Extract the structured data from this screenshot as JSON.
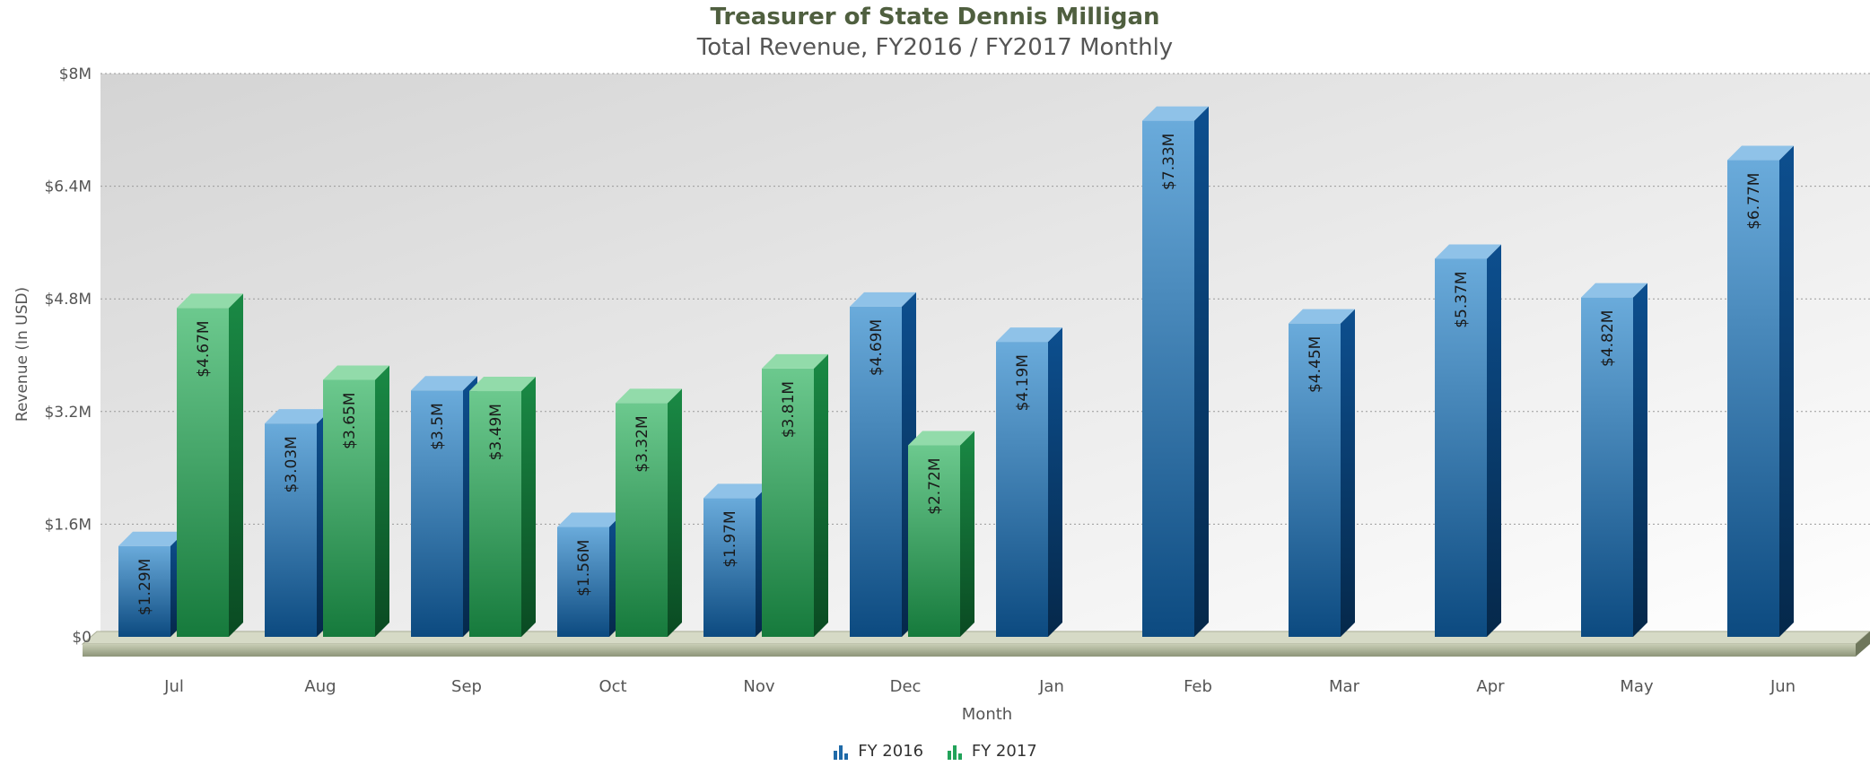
{
  "chart_data": {
    "type": "bar",
    "title": "Treasurer of State Dennis Milligan",
    "subtitle": "Total Revenue, FY2016 / FY2017 Monthly",
    "xlabel": "Month",
    "ylabel": "Revenue (In USD)",
    "ylim": [
      0,
      8000000
    ],
    "yticks": [
      "$0",
      "$1.6M",
      "$3.2M",
      "$4.8M",
      "$6.4M",
      "$8M"
    ],
    "ytick_values": [
      0,
      1600000,
      3200000,
      4800000,
      6400000,
      8000000
    ],
    "grid": true,
    "legend_position": "bottom-center",
    "categories": [
      "Jul",
      "Aug",
      "Sep",
      "Oct",
      "Nov",
      "Dec",
      "Jan",
      "Feb",
      "Mar",
      "Apr",
      "May",
      "Jun"
    ],
    "series": [
      {
        "name": "FY 2016",
        "color": "#1f6aa8",
        "values": [
          1290000,
          3030000,
          3500000,
          1560000,
          1970000,
          4690000,
          4190000,
          7330000,
          4450000,
          5370000,
          4820000,
          6770000
        ],
        "labels": [
          "$1.29M",
          "$3.03M",
          "$3.5M",
          "$1.56M",
          "$1.97M",
          "$4.69M",
          "$4.19M",
          "$7.33M",
          "$4.45M",
          "$5.37M",
          "$4.82M",
          "$6.77M"
        ]
      },
      {
        "name": "FY 2017",
        "color": "#22a35a",
        "values": [
          4670000,
          3650000,
          3490000,
          3320000,
          3810000,
          2720000,
          null,
          null,
          null,
          null,
          null,
          null
        ],
        "labels": [
          "$4.67M",
          "$3.65M",
          "$3.49M",
          "$3.32M",
          "$3.81M",
          "$2.72M",
          "",
          "",
          "",
          "",
          "",
          ""
        ]
      }
    ]
  }
}
